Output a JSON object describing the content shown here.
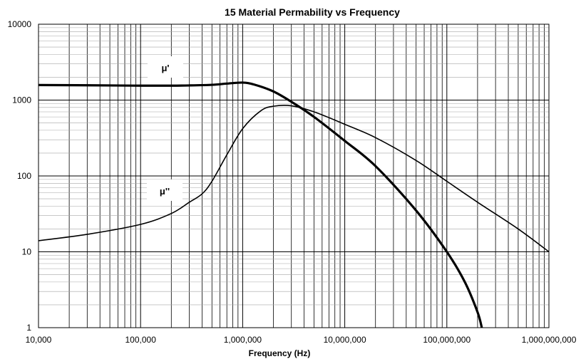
{
  "chart_data": {
    "type": "line",
    "title": "15 Material Permability vs Frequency",
    "xlabel": "Frequency (Hz)",
    "ylabel": "",
    "x_scale": "log",
    "y_scale": "log",
    "xlim": [
      10000,
      1000000000
    ],
    "ylim": [
      1,
      10000
    ],
    "x_ticks": [
      10000,
      100000,
      1000000,
      10000000,
      100000000,
      1000000000
    ],
    "x_tick_labels": [
      "10,000",
      "100,000",
      "1,000,000",
      "10,000,000",
      "100,000,000",
      "1,000,000,000"
    ],
    "y_ticks": [
      1,
      10,
      100,
      1000,
      10000
    ],
    "y_tick_labels": [
      "1",
      "10",
      "100",
      "1000",
      "10000"
    ],
    "grid": true,
    "series": [
      {
        "name": "μ'",
        "x": [
          10000,
          50000,
          100000,
          200000,
          300000,
          500000,
          700000,
          1000000,
          1300000,
          2000000,
          3000000,
          5000000,
          10000000,
          20000000,
          50000000,
          100000000,
          150000000,
          200000000,
          220000000
        ],
        "y": [
          1580,
          1560,
          1550,
          1550,
          1560,
          1590,
          1650,
          1700,
          1600,
          1300,
          950,
          600,
          290,
          135,
          35,
          10,
          4,
          1.6,
          1
        ]
      },
      {
        "name": "μ''",
        "x": [
          10000,
          30000,
          100000,
          200000,
          300000,
          400000,
          500000,
          700000,
          1000000,
          1500000,
          2000000,
          3000000,
          5000000,
          10000000,
          20000000,
          50000000,
          100000000,
          200000000,
          500000000,
          1000000000
        ],
        "y": [
          14,
          17,
          23,
          32,
          45,
          58,
          85,
          190,
          420,
          720,
          830,
          840,
          700,
          480,
          320,
          160,
          85,
          45,
          20,
          10
        ]
      }
    ]
  }
}
